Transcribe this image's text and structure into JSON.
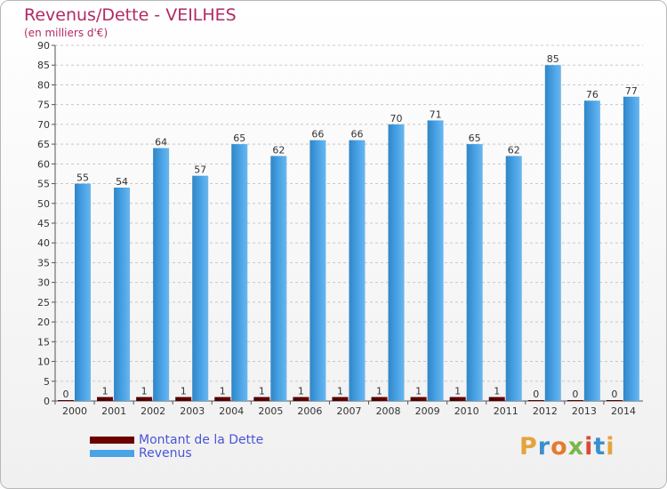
{
  "title": "Revenus/Dette - VEILHES",
  "subtitle": "(en milliers d'€)",
  "colors": {
    "debt": "#6b0000",
    "revenue": "#4aa3e6",
    "title": "#b22a64",
    "legend_text": "#4a55d6"
  },
  "legend": {
    "items": [
      {
        "label": "Montant de la Dette",
        "color": "#6b0000"
      },
      {
        "label": "Revenus",
        "color": "#4aa3e6"
      }
    ]
  },
  "logo": {
    "text": "Proxiti",
    "letter_colors": [
      "#e6a23c",
      "#3a8fd0",
      "#e57a2e",
      "#7ab648",
      "#d94a3a",
      "#3a8fd0",
      "#e6a23c"
    ]
  },
  "chart_data": {
    "type": "bar",
    "title": "Revenus/Dette - VEILHES",
    "subtitle": "(en milliers d'€)",
    "categories": [
      "2000",
      "2001",
      "2002",
      "2003",
      "2004",
      "2005",
      "2006",
      "2007",
      "2008",
      "2009",
      "2010",
      "2011",
      "2012",
      "2013",
      "2014"
    ],
    "series": [
      {
        "name": "Montant de la Dette",
        "values": [
          0,
          1,
          1,
          1,
          1,
          1,
          1,
          1,
          1,
          1,
          1,
          1,
          0,
          0,
          0
        ]
      },
      {
        "name": "Revenus",
        "values": [
          55,
          54,
          64,
          57,
          65,
          62,
          66,
          66,
          70,
          71,
          65,
          62,
          85,
          76,
          77
        ]
      }
    ],
    "ylim": [
      0,
      90
    ],
    "yticks": [
      0,
      5,
      10,
      15,
      20,
      25,
      30,
      35,
      40,
      45,
      50,
      55,
      60,
      65,
      70,
      75,
      80,
      85,
      90
    ],
    "grid": "y-dashed",
    "legend_position": "bottom-left"
  }
}
